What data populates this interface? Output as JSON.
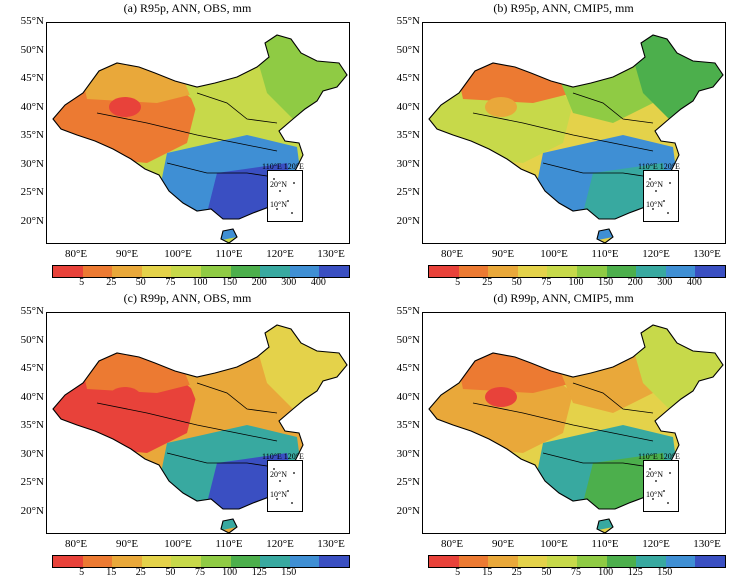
{
  "panels": [
    {
      "title": "(a) R95p, ANN, OBS, mm",
      "scheme": "r95",
      "palette": "obs95"
    },
    {
      "title": "(b) R95p, ANN, CMIP5, mm",
      "scheme": "r95",
      "palette": "cmip95"
    },
    {
      "title": "(c) R99p, ANN, OBS, mm",
      "scheme": "r99",
      "palette": "obs99"
    },
    {
      "title": "(d) R99p, ANN, CMIP5, mm",
      "scheme": "r99",
      "palette": "cmip99"
    }
  ],
  "lat_labels": [
    "55°N",
    "50°N",
    "45°N",
    "40°N",
    "35°N",
    "30°N",
    "25°N",
    "20°N"
  ],
  "lon_labels": [
    "80°E",
    "90°E",
    "100°E",
    "110°E",
    "120°E",
    "130°E"
  ],
  "inset_labels": {
    "lon": "110°E 120°E",
    "lat1": "20°N",
    "lat2": "10°N"
  },
  "colorbar_r95": {
    "labels": [
      "5",
      "25",
      "50",
      "75",
      "100",
      "150",
      "200",
      "300",
      "400"
    ],
    "colors": [
      "#e8423a",
      "#ec7a32",
      "#e9a83a",
      "#e4d24a",
      "#c7d94a",
      "#8fcb44",
      "#4caf4c",
      "#38a9a0",
      "#3f8fd4",
      "#3a4fc2"
    ]
  },
  "colorbar_r99": {
    "labels": [
      "5",
      "15",
      "25",
      "50",
      "75",
      "100",
      "125",
      "150"
    ],
    "colors": [
      "#e8423a",
      "#ec7a32",
      "#e9a83a",
      "#e4d24a",
      "#c7d94a",
      "#8fcb44",
      "#4caf4c",
      "#38a9a0",
      "#3f8fd4",
      "#3a4fc2"
    ]
  },
  "palettes": {
    "obs95": {
      "w": "#ec7a32",
      "nw": "#e9a83a",
      "ne": "#8fcb44",
      "c": "#c7d94a",
      "s": "#3f8fd4",
      "se": "#3a4fc2",
      "n": "#c7d94a",
      "blob": "#e8423a"
    },
    "cmip95": {
      "w": "#c7d94a",
      "nw": "#ec7a32",
      "ne": "#4caf4c",
      "c": "#e4d24a",
      "s": "#3f8fd4",
      "se": "#38a9a0",
      "n": "#8fcb44",
      "blob": "#e9a83a"
    },
    "obs99": {
      "w": "#e8423a",
      "nw": "#ec7a32",
      "ne": "#e4d24a",
      "c": "#e9a83a",
      "s": "#38a9a0",
      "se": "#3a4fc2",
      "n": "#e9a83a",
      "blob": "#e8423a"
    },
    "cmip99": {
      "w": "#e9a83a",
      "nw": "#ec7a32",
      "ne": "#c7d94a",
      "c": "#e4d24a",
      "s": "#38a9a0",
      "se": "#4caf4c",
      "n": "#e9a83a",
      "blob": "#e8423a"
    }
  }
}
